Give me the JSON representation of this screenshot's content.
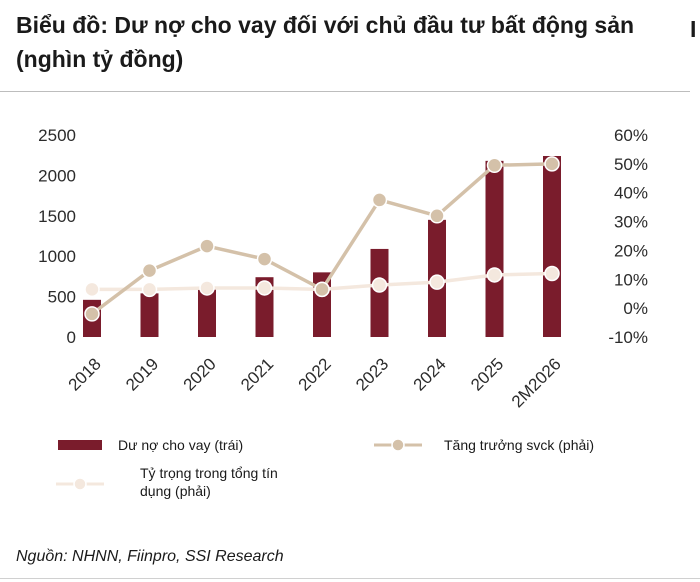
{
  "header": {
    "title": "Biểu đồ: Dư nợ cho vay đối với chủ đầu tư bất động sản (nghìn tỷ đồng)",
    "edge_glyph": "I"
  },
  "chart_data": {
    "type": "bar",
    "categories": [
      "2018",
      "2019",
      "2020",
      "2021",
      "2022",
      "2023",
      "2024",
      "2025",
      "2M2026"
    ],
    "series": [
      {
        "name": "Dư nợ cho vay (trái)",
        "kind": "bar",
        "axis": "left",
        "color": "#7a1c2c",
        "values": [
          460,
          540,
          610,
          740,
          800,
          1090,
          1450,
          2180,
          2240
        ]
      },
      {
        "name": "Tăng trưởng svck (phải)",
        "kind": "line",
        "axis": "right",
        "color": "#d4c1a9",
        "values": [
          -2,
          13,
          21.5,
          17,
          6.5,
          37.5,
          32,
          49.5,
          50
        ]
      },
      {
        "name": "Tỷ trọng trong tổng tín dụng (phải)",
        "kind": "line",
        "axis": "right",
        "color": "#f4e8de",
        "values": [
          6.5,
          6.5,
          7,
          7,
          6.5,
          8,
          9,
          11.5,
          12
        ]
      }
    ],
    "left_axis": {
      "min": 0,
      "max": 2500,
      "ticks": [
        "0",
        "500",
        "1000",
        "1500",
        "2000",
        "2500"
      ]
    },
    "right_axis": {
      "min": -10,
      "max": 60,
      "ticks": [
        "-10%",
        "0%",
        "10%",
        "20%",
        "30%",
        "40%",
        "50%",
        "60%"
      ]
    },
    "grid": false,
    "legend_position": "bottom"
  },
  "legend": [
    {
      "label": "Dư nợ cho vay (trái)"
    },
    {
      "label": "Tăng trưởng svck (phải)"
    },
    {
      "label_line1": "Tỷ trọng trong tổng tín",
      "label_line2": "dụng (phải)"
    }
  ],
  "source": "Nguồn: NHNN, Fiinpro, SSI Research"
}
